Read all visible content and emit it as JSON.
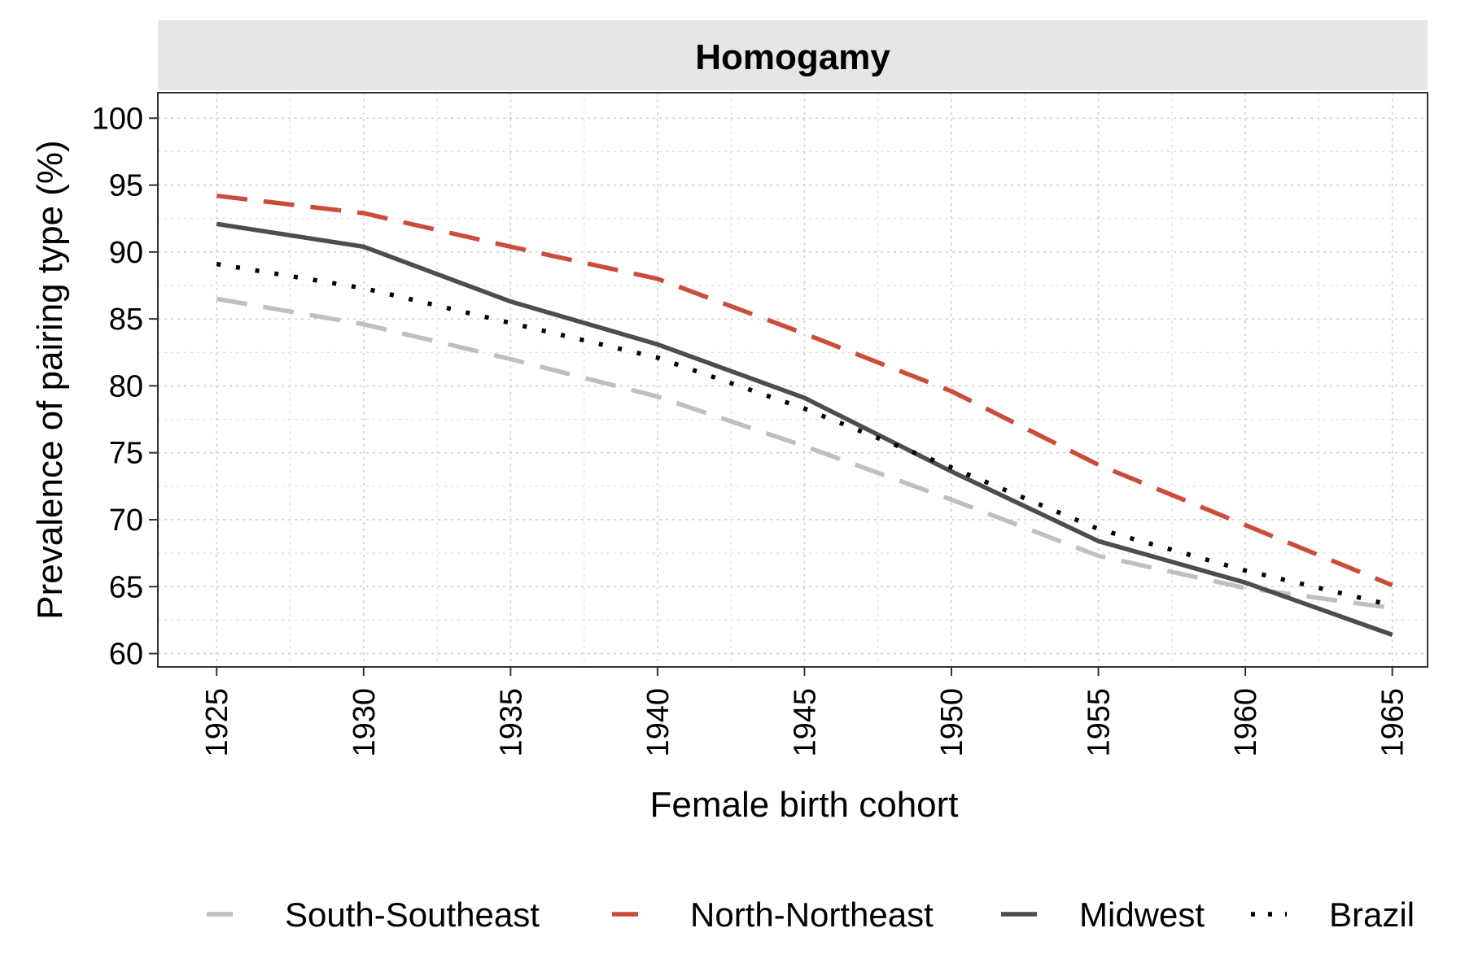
{
  "chart_data": {
    "type": "line",
    "title": "Homogamy",
    "xlabel": "Female birth cohort",
    "ylabel": "Prevalence of pairing type (%)",
    "x": [
      1925,
      1930,
      1935,
      1940,
      1945,
      1950,
      1955,
      1960,
      1965
    ],
    "x_ticks": [
      "1925",
      "1930",
      "1935",
      "1940",
      "1945",
      "1950",
      "1955",
      "1960",
      "1965"
    ],
    "y_ticks": [
      "60",
      "65",
      "70",
      "75",
      "80",
      "85",
      "90",
      "95",
      "100"
    ],
    "xlim": [
      1923,
      1966.2
    ],
    "ylim": [
      59,
      101.9
    ],
    "grid": true,
    "legend_position": "bottom",
    "series": [
      {
        "name": "South-Southeast",
        "color": "#bfbfbf",
        "dash": "long-dash",
        "values": [
          86.5,
          84.6,
          82.0,
          79.2,
          75.5,
          71.5,
          67.3,
          64.9,
          63.4
        ]
      },
      {
        "name": "North-Northeast",
        "color": "#cc4c3b",
        "dash": "long-dash",
        "values": [
          94.2,
          92.9,
          90.4,
          88.0,
          83.9,
          79.6,
          74.1,
          69.6,
          65.1
        ]
      },
      {
        "name": "Midwest",
        "color": "#4d4d4d",
        "dash": "solid",
        "values": [
          92.1,
          90.4,
          86.3,
          83.1,
          79.1,
          73.6,
          68.4,
          65.3,
          61.4
        ]
      },
      {
        "name": "Brazil",
        "color": "#000000",
        "dash": "dotted",
        "values": [
          89.1,
          87.3,
          84.7,
          82.1,
          78.3,
          73.9,
          69.3,
          66.2,
          63.6
        ]
      }
    ]
  }
}
